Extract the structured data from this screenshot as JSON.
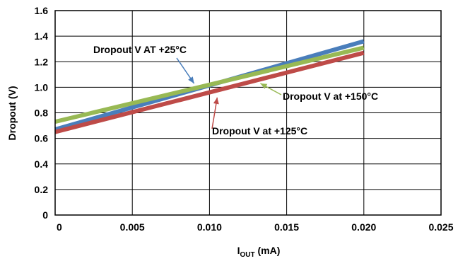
{
  "chart_data": {
    "type": "line",
    "xlabel": "I",
    "xlabel_sub": "OUT",
    "xlabel_unit": " (mA)",
    "ylabel": "Dropout (V)",
    "xlim": [
      0,
      0.025
    ],
    "ylim": [
      0,
      1.6
    ],
    "x_ticks": [
      "0",
      "0.005",
      "0.010",
      "0.015",
      "0.020",
      "0.025"
    ],
    "y_ticks": [
      "0",
      "0.2",
      "0.4",
      "0.6",
      "0.8",
      "1.0",
      "1.2",
      "1.4",
      "1.6"
    ],
    "grid": true,
    "series": [
      {
        "name": "Dropout V AT +25°C",
        "color": "#4a7ebb",
        "x": [
          0,
          0.02
        ],
        "y": [
          0.67,
          1.36
        ],
        "annotation": {
          "text": "Dropout V AT +25°C",
          "anchor": [
            0.009,
            1.03
          ]
        }
      },
      {
        "name": "Dropout V at +125°C",
        "color": "#be4b48",
        "x": [
          0,
          0.02
        ],
        "y": [
          0.65,
          1.27
        ],
        "annotation": {
          "text": "Dropout V at +125°C",
          "anchor": [
            0.0105,
            0.92
          ]
        }
      },
      {
        "name": "Dropout V at +150°C",
        "color": "#98b954",
        "x": [
          0,
          0.02
        ],
        "y": [
          0.73,
          1.31
        ],
        "annotation": {
          "text": "Dropout V at +150°C",
          "anchor": [
            0.0133,
            1.03
          ]
        }
      }
    ]
  }
}
